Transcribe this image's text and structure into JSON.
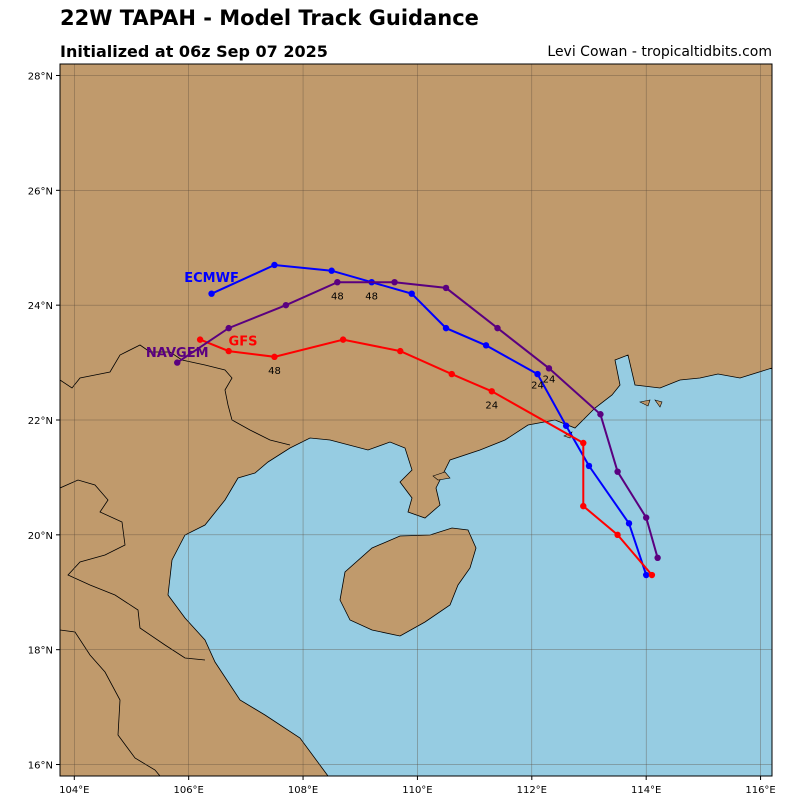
{
  "header": {
    "title": "22W TAPAH - Model Track Guidance",
    "subtitle": "Initialized at 06z Sep 07 2025",
    "credit": "Levi Cowan - tropicaltidbits.com"
  },
  "colors": {
    "land": "#c09a6c",
    "water": "#96cce2",
    "grid": "#5a4a3a",
    "coast": "#000000"
  },
  "axes": {
    "lon_range": [
      103.75,
      116.2
    ],
    "lat_range": [
      15.8,
      28.2
    ],
    "lon_ticks": [
      104,
      106,
      108,
      110,
      112,
      114,
      116
    ],
    "lat_ticks": [
      16,
      18,
      20,
      22,
      24,
      26,
      28
    ],
    "lon_tick_labels": [
      "104°E",
      "106°E",
      "108°E",
      "110°E",
      "112°E",
      "114°E",
      "116°E"
    ],
    "lat_tick_labels": [
      "16°N",
      "18°N",
      "20°N",
      "22°N",
      "24°N",
      "26°N",
      "28°N"
    ],
    "grid": true
  },
  "chart_data": {
    "type": "map-tracks",
    "tracks": [
      {
        "name": "ECMWF",
        "color": "#0000ff",
        "label_pos": [
          106.4,
          24.4
        ],
        "points": [
          [
            114.0,
            19.3
          ],
          [
            113.7,
            20.2
          ],
          [
            113.0,
            21.2
          ],
          [
            112.6,
            21.9
          ],
          [
            112.1,
            22.8
          ],
          [
            111.2,
            23.3
          ],
          [
            110.5,
            23.6
          ],
          [
            109.9,
            24.2
          ],
          [
            109.2,
            24.4
          ],
          [
            108.5,
            24.6
          ],
          [
            107.5,
            24.7
          ],
          [
            106.4,
            24.2
          ]
        ],
        "hour_labels": [
          {
            "text": "24",
            "lon": 112.1,
            "lat": 22.55
          },
          {
            "text": "48",
            "lon": 109.2,
            "lat": 24.1
          }
        ]
      },
      {
        "name": "GFS",
        "color": "#ff0000",
        "label_pos": [
          106.95,
          23.3
        ],
        "points": [
          [
            114.1,
            19.3
          ],
          [
            113.5,
            20.0
          ],
          [
            112.9,
            20.5
          ],
          [
            112.9,
            21.6
          ],
          [
            111.3,
            22.5
          ],
          [
            110.6,
            22.8
          ],
          [
            109.7,
            23.2
          ],
          [
            108.7,
            23.4
          ],
          [
            107.5,
            23.1
          ],
          [
            106.7,
            23.2
          ],
          [
            106.2,
            23.4
          ]
        ],
        "hour_labels": [
          {
            "text": "24",
            "lon": 111.3,
            "lat": 22.2
          },
          {
            "text": "48",
            "lon": 107.5,
            "lat": 22.8
          }
        ]
      },
      {
        "name": "NAVGEM",
        "color": "#5a0080",
        "label_pos": [
          105.8,
          23.1
        ],
        "points": [
          [
            114.2,
            19.6
          ],
          [
            114.0,
            20.3
          ],
          [
            113.5,
            21.1
          ],
          [
            113.2,
            22.1
          ],
          [
            112.3,
            22.9
          ],
          [
            111.4,
            23.6
          ],
          [
            110.5,
            24.3
          ],
          [
            109.6,
            24.4
          ],
          [
            108.6,
            24.4
          ],
          [
            107.7,
            24.0
          ],
          [
            106.7,
            23.6
          ],
          [
            105.8,
            23.0
          ]
        ],
        "hour_labels": [
          {
            "text": "24",
            "lon": 112.3,
            "lat": 22.65
          },
          {
            "text": "48",
            "lon": 108.6,
            "lat": 24.1
          }
        ]
      }
    ]
  }
}
